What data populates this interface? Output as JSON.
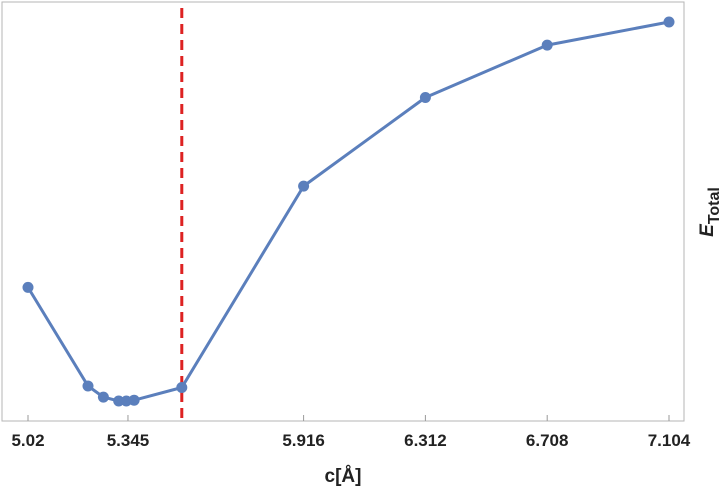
{
  "chart_data": {
    "type": "line",
    "xlabel": "c[Å]",
    "ylabel": "E",
    "ylabel_subscript": "Total",
    "x_tick_labels": [
      "5.02",
      "5.345",
      "5.916",
      "6.312",
      "6.708",
      "7.104"
    ],
    "x_ticks": [
      5.02,
      5.345,
      5.916,
      6.312,
      6.708,
      7.104
    ],
    "xlim": [
      5.0,
      7.105
    ],
    "ylim": [
      0,
      100
    ],
    "grid": false,
    "series": [
      {
        "color": "#5b7fbc",
        "x": [
          5.02,
          5.215,
          5.265,
          5.315,
          5.34,
          5.365,
          5.52,
          5.916,
          6.312,
          6.708,
          7.104
        ],
        "y": [
          29.5,
          3.9,
          1.0,
          0.0,
          0.0,
          0.2,
          3.5,
          55.8,
          78.8,
          92.4,
          98.4
        ]
      }
    ],
    "reference_line": {
      "x": 5.52,
      "color": "#dd2222",
      "style": "dashed"
    }
  }
}
